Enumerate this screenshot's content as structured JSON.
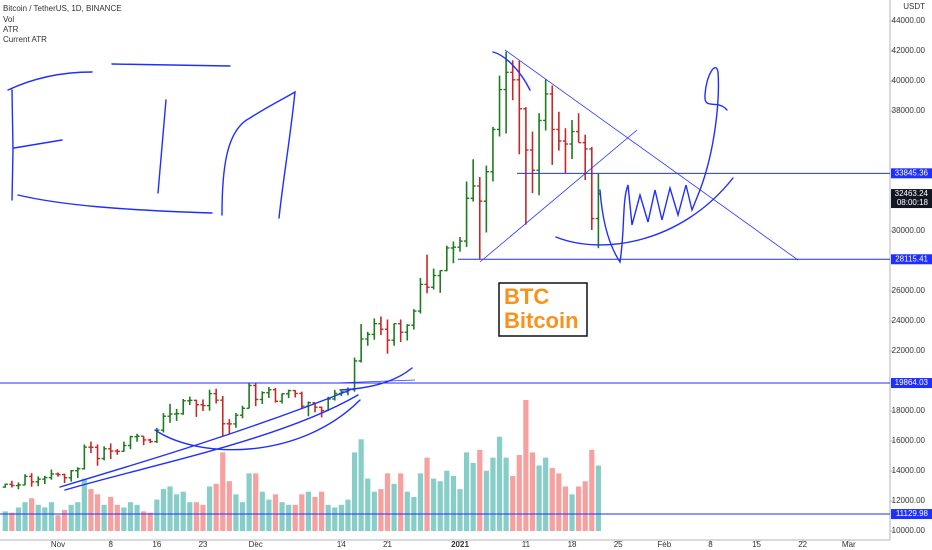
{
  "chart_data": {
    "type": "ohlc",
    "title": "Bitcoin / TetherUS, 1D, BINANCE",
    "indicators": [
      "Vol",
      "ATR",
      "Current ATR"
    ],
    "currency": "USDT",
    "annotations": [
      "BTC",
      "Bitcoin"
    ],
    "up_color": "#1e7b1e",
    "down_color": "#c62828",
    "volume_up_color": "#26a69a",
    "volume_down_color": "#ef5350",
    "level_color": "#1f2fff",
    "grid": false,
    "xlim": [
      -8.8,
      126.25
    ],
    "ylim": [
      9400,
      45400
    ],
    "volume_lim": [
      0,
      100
    ],
    "xticks": [
      {
        "value": 0,
        "label": "Nov"
      },
      8,
      {
        "value": 15,
        "label": "16"
      },
      {
        "value": 22,
        "label": "23"
      },
      {
        "value": 30,
        "label": "Dec"
      },
      {
        "value": 43,
        "label": "14"
      },
      {
        "value": 50,
        "label": "21"
      },
      {
        "value": 61,
        "label": "2021"
      },
      {
        "value": 71,
        "label": "11"
      },
      {
        "value": 78,
        "label": "18"
      },
      {
        "value": 85,
        "label": "25"
      },
      {
        "value": 92,
        "label": "Feb"
      },
      {
        "value": 99,
        "label": "8"
      },
      {
        "value": 106,
        "label": "15"
      },
      {
        "value": 113,
        "label": "22"
      },
      {
        "value": 120,
        "label": "Mar"
      }
    ],
    "yticks": [
      {
        "value": 44000,
        "label": "44000.00"
      },
      {
        "value": 42000,
        "label": "42000.00"
      },
      {
        "value": 40000,
        "label": "40000.00"
      },
      {
        "value": 38000,
        "label": "38000.00"
      },
      {
        "value": 30000,
        "label": "30000.00"
      },
      {
        "value": 26000,
        "label": "26000.00"
      },
      {
        "value": 24000,
        "label": "24000.00"
      },
      {
        "value": 22000,
        "label": "22000.00"
      },
      {
        "value": 18000,
        "label": "18000.00"
      },
      {
        "value": 16000,
        "label": "16000.00"
      },
      {
        "value": 14000,
        "label": "14000.00"
      },
      {
        "value": 12000,
        "label": "12000.00"
      },
      {
        "value": 10000,
        "label": "10000.00"
      }
    ],
    "levels": [
      33845.36,
      28115.41,
      19864.03,
      11129.98
    ],
    "last_price": 32463.24,
    "countdown": "08:00:18",
    "x": [
      -8,
      -7,
      -6,
      -5,
      -4,
      -3,
      -2,
      -1,
      0,
      1,
      2,
      3,
      4,
      5,
      6,
      7,
      8,
      9,
      10,
      11,
      12,
      13,
      14,
      15,
      16,
      17,
      18,
      19,
      20,
      21,
      22,
      23,
      24,
      25,
      26,
      27,
      28,
      29,
      30,
      31,
      32,
      33,
      34,
      35,
      36,
      37,
      38,
      39,
      40,
      41,
      42,
      43,
      44,
      45,
      46,
      47,
      48,
      49,
      50,
      51,
      52,
      53,
      54,
      55,
      56,
      57,
      58,
      59,
      60,
      61,
      62,
      63,
      64,
      65,
      66,
      67,
      68,
      69,
      70,
      71,
      72,
      73,
      74,
      75,
      76,
      77,
      78,
      79,
      80,
      81,
      82
    ],
    "candles": [
      [
        12930,
        13165,
        12885,
        13115
      ],
      [
        13115,
        13350,
        12900,
        13030
      ],
      [
        13030,
        13240,
        12780,
        13070
      ],
      [
        13070,
        13790,
        13060,
        13640
      ],
      [
        13640,
        13860,
        12950,
        13280
      ],
      [
        13280,
        13640,
        12990,
        13455
      ],
      [
        13455,
        13680,
        13130,
        13560
      ],
      [
        13560,
        14100,
        13420,
        13800
      ],
      [
        13800,
        13900,
        13620,
        13760
      ],
      [
        13760,
        13820,
        13200,
        13550
      ],
      [
        13550,
        14070,
        13290,
        14020
      ],
      [
        14020,
        14250,
        13530,
        14150
      ],
      [
        14150,
        15770,
        14100,
        15590
      ],
      [
        15590,
        15960,
        15200,
        15580
      ],
      [
        15580,
        15770,
        14350,
        14830
      ],
      [
        14830,
        15650,
        14710,
        15480
      ],
      [
        15480,
        15840,
        14800,
        15330
      ],
      [
        15330,
        15460,
        15080,
        15310
      ],
      [
        15310,
        15960,
        15280,
        15700
      ],
      [
        15700,
        16350,
        15450,
        16290
      ],
      [
        16290,
        16480,
        15950,
        16320
      ],
      [
        16320,
        16320,
        15720,
        16070
      ],
      [
        16070,
        16150,
        15860,
        15960
      ],
      [
        15960,
        16880,
        15870,
        16720
      ],
      [
        16720,
        17860,
        16570,
        17650
      ],
      [
        17650,
        18480,
        17210,
        17800
      ],
      [
        17800,
        18140,
        17340,
        17820
      ],
      [
        17820,
        18800,
        17750,
        18680
      ],
      [
        18680,
        18960,
        18400,
        18710
      ],
      [
        18710,
        18750,
        17610,
        18420
      ],
      [
        18420,
        18770,
        18000,
        18360
      ],
      [
        18360,
        19420,
        18020,
        19160
      ],
      [
        19160,
        19480,
        18500,
        18720
      ],
      [
        18720,
        19000,
        16330,
        17150
      ],
      [
        17150,
        17460,
        16500,
        17140
      ],
      [
        17140,
        17870,
        16880,
        17720
      ],
      [
        17720,
        18350,
        17510,
        18180
      ],
      [
        18180,
        19860,
        18180,
        19700
      ],
      [
        19700,
        19890,
        18320,
        18770
      ],
      [
        18770,
        19310,
        18470,
        19220
      ],
      [
        19220,
        19600,
        18870,
        19420
      ],
      [
        19420,
        19530,
        18560,
        18650
      ],
      [
        18650,
        19180,
        18500,
        19150
      ],
      [
        19150,
        19420,
        18860,
        19360
      ],
      [
        19360,
        19390,
        18900,
        19170
      ],
      [
        19170,
        19290,
        18200,
        18320
      ],
      [
        18320,
        18640,
        17650,
        18550
      ],
      [
        18550,
        18560,
        17910,
        18250
      ],
      [
        18250,
        18290,
        17570,
        18030
      ],
      [
        18030,
        18950,
        18010,
        18800
      ],
      [
        18800,
        19410,
        18700,
        19170
      ],
      [
        19170,
        19350,
        19000,
        19270
      ],
      [
        19270,
        19570,
        19050,
        19430
      ],
      [
        19430,
        21560,
        19290,
        21340
      ],
      [
        21340,
        23800,
        21230,
        22800
      ],
      [
        22800,
        23280,
        22350,
        23110
      ],
      [
        23110,
        24170,
        22750,
        23820
      ],
      [
        23820,
        24300,
        23060,
        23450
      ],
      [
        23450,
        24100,
        21820,
        22720
      ],
      [
        22720,
        23840,
        22350,
        23820
      ],
      [
        23820,
        24100,
        22600,
        23250
      ],
      [
        23250,
        23790,
        22700,
        23720
      ],
      [
        23720,
        24790,
        23430,
        24660
      ],
      [
        24660,
        26870,
        24500,
        26440
      ],
      [
        26440,
        28420,
        25850,
        26250
      ],
      [
        26250,
        27500,
        26100,
        27030
      ],
      [
        27030,
        27390,
        25880,
        27360
      ],
      [
        27360,
        29020,
        27320,
        28870
      ],
      [
        28870,
        29300,
        27850,
        28920
      ],
      [
        28920,
        29600,
        28620,
        29330
      ],
      [
        29330,
        33300,
        28940,
        32180
      ],
      [
        32180,
        34780,
        31960,
        33000
      ],
      [
        33000,
        33600,
        28130,
        31990
      ],
      [
        31990,
        34360,
        29900,
        33950
      ],
      [
        33950,
        36940,
        33300,
        36770
      ],
      [
        36770,
        40360,
        36300,
        39430
      ],
      [
        39430,
        41950,
        36500,
        40580
      ],
      [
        40580,
        41380,
        38720,
        40080
      ],
      [
        40080,
        41350,
        35110,
        38150
      ],
      [
        38150,
        38260,
        30420,
        35400
      ],
      [
        35400,
        36630,
        32530,
        34050
      ],
      [
        34050,
        37850,
        32380,
        37370
      ],
      [
        37370,
        40100,
        36700,
        39140
      ],
      [
        39140,
        39700,
        34410,
        36770
      ],
      [
        36770,
        37950,
        35360,
        36000
      ],
      [
        36000,
        36850,
        33850,
        35800
      ],
      [
        35800,
        37400,
        34800,
        36630
      ],
      [
        36630,
        37850,
        35900,
        35890
      ],
      [
        35890,
        36420,
        33400,
        35470
      ],
      [
        35470,
        35600,
        30070,
        30830
      ],
      [
        30830,
        33800,
        28850,
        32463.24
      ]
    ],
    "volume": [
      15,
      14,
      18,
      22,
      25,
      20,
      18,
      22,
      12,
      16,
      20,
      22,
      40,
      32,
      28,
      20,
      26,
      20,
      18,
      22,
      20,
      15,
      14,
      24,
      32,
      34,
      28,
      30,
      22,
      22,
      20,
      34,
      36,
      60,
      38,
      28,
      22,
      44,
      44,
      30,
      24,
      28,
      22,
      20,
      20,
      28,
      30,
      26,
      30,
      20,
      18,
      20,
      24,
      60,
      70,
      40,
      30,
      32,
      44,
      36,
      44,
      30,
      26,
      44,
      56,
      40,
      38,
      46,
      42,
      32,
      60,
      52,
      62,
      46,
      56,
      72,
      56,
      42,
      58,
      100,
      60,
      50,
      56,
      48,
      44,
      34,
      28,
      34,
      38,
      62,
      50
    ]
  }
}
